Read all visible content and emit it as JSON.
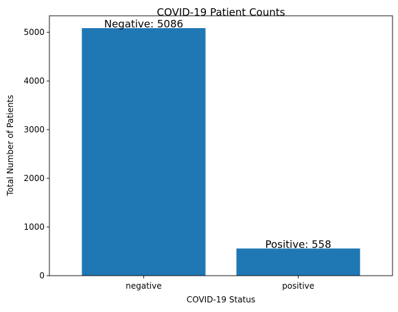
{
  "chart_data": {
    "type": "bar",
    "title": "COVID-19 Patient Counts",
    "xlabel": "COVID-19 Status",
    "ylabel": "Total Number of Patients",
    "categories": [
      "negative",
      "positive"
    ],
    "values": [
      5086,
      558
    ],
    "data_labels": [
      "Negative: 5086",
      "Positive: 558"
    ],
    "ylim": [
      0,
      5340
    ],
    "yticks": [
      0,
      1000,
      2000,
      3000,
      4000,
      5000
    ],
    "grid": false,
    "legend": "none",
    "bar_color": "#1f77b4"
  }
}
